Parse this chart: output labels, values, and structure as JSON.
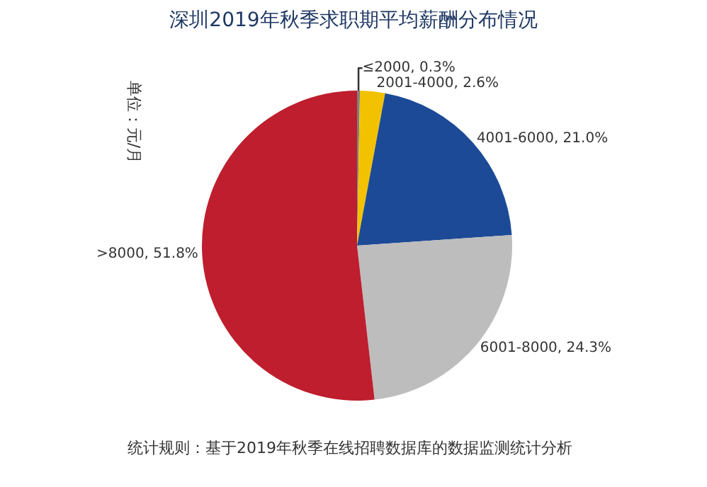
{
  "chart_data": {
    "type": "pie",
    "title": "深圳2019年秋季求职期平均薪酬分布情况",
    "categories": [
      "≤2000",
      "2001-4000",
      "4001-6000",
      "6001-8000",
      ">8000"
    ],
    "values": [
      0.3,
      2.6,
      21.0,
      24.3,
      51.8
    ],
    "value_labels": [
      "0.3%",
      "2.6%",
      "21.0%",
      "24.3%",
      "51.8%"
    ],
    "colors": [
      "#7f7f7f",
      "#f2c200",
      "#1c4a97",
      "#bdbdbd",
      "#be1e2d"
    ],
    "ylabel": "单位：元/月",
    "annotations": [
      "统计规则：基于2019年秋季在线招聘数据库的数据监测统计分析"
    ],
    "legend": false
  }
}
